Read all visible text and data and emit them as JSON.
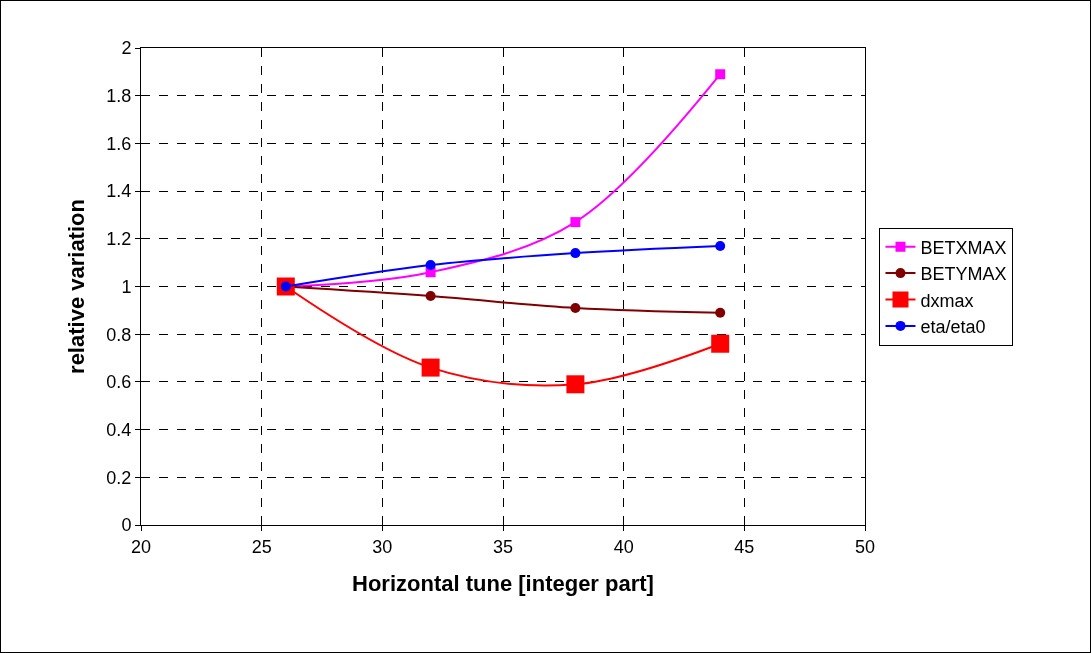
{
  "chart_data": {
    "type": "line",
    "xlabel": "Horizontal tune [integer part]",
    "ylabel": "relative variation",
    "x": [
      26,
      32,
      38,
      44
    ],
    "series": [
      {
        "name": "BETXMAX",
        "color": "#ff00ff",
        "marker": "square",
        "values": [
          1.0,
          1.06,
          1.27,
          1.89
        ]
      },
      {
        "name": "BETYMAX",
        "color": "#800000",
        "marker": "circle",
        "values": [
          1.0,
          0.96,
          0.91,
          0.89
        ]
      },
      {
        "name": "dxmax",
        "color": "#ff0000",
        "marker": "square",
        "values": [
          1.0,
          0.66,
          0.59,
          0.76
        ]
      },
      {
        "name": "eta/eta0",
        "color": "#0000ff",
        "marker": "circle",
        "values": [
          1.0,
          1.09,
          1.14,
          1.17
        ]
      }
    ],
    "xlim": [
      20,
      50
    ],
    "xticks": [
      20,
      25,
      30,
      35,
      40,
      45,
      50
    ],
    "ylim": [
      0,
      2
    ],
    "yticks": [
      0,
      0.2,
      0.4,
      0.6,
      0.8,
      1,
      1.2,
      1.4,
      1.6,
      1.8,
      2
    ],
    "grid": true,
    "legend": "right",
    "line_style": "solid"
  }
}
